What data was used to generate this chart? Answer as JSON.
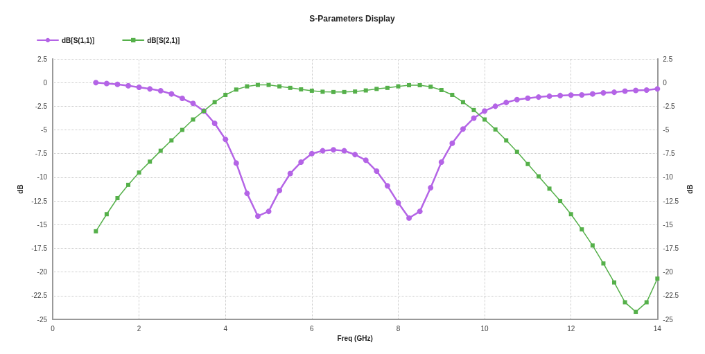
{
  "chart_data": {
    "type": "line",
    "title": "S-Parameters Display",
    "xlabel": "Freq (GHz)",
    "ylabel": "dB",
    "y2label": "dB",
    "x": [
      1,
      1.25,
      1.5,
      1.75,
      2,
      2.25,
      2.5,
      2.75,
      3,
      3.25,
      3.5,
      3.75,
      4,
      4.25,
      4.5,
      4.75,
      5,
      5.25,
      5.5,
      5.75,
      6,
      6.25,
      6.5,
      6.75,
      7,
      7.25,
      7.5,
      7.75,
      8,
      8.25,
      8.5,
      8.75,
      9,
      9.25,
      9.5,
      9.75,
      10,
      10.25,
      10.5,
      10.75,
      11,
      11.25,
      11.5,
      11.75,
      12,
      12.25,
      12.5,
      12.75,
      13,
      13.25,
      13.5,
      13.75,
      14
    ],
    "series": [
      {
        "name": "dB[S(1,1)]",
        "color": "#b464e6",
        "marker": "circle",
        "values": [
          0,
          -0.1,
          -0.19,
          -0.33,
          -0.5,
          -0.67,
          -0.86,
          -1.2,
          -1.67,
          -2.2,
          -3.0,
          -4.3,
          -6.0,
          -8.5,
          -11.7,
          -14.1,
          -13.6,
          -11.4,
          -9.6,
          -8.4,
          -7.5,
          -7.2,
          -7.1,
          -7.2,
          -7.6,
          -8.2,
          -9.35,
          -10.9,
          -12.7,
          -14.3,
          -13.6,
          -11.1,
          -8.4,
          -6.4,
          -4.9,
          -3.75,
          -3.0,
          -2.5,
          -2.1,
          -1.8,
          -1.65,
          -1.53,
          -1.44,
          -1.37,
          -1.32,
          -1.3,
          -1.2,
          -1.09,
          -1.02,
          -0.9,
          -0.83,
          -0.79,
          -0.67
        ]
      },
      {
        "name": "dB[S(2,1)]",
        "color": "#55b04a",
        "marker": "square",
        "values": [
          -15.7,
          -13.9,
          -12.2,
          -10.8,
          -9.5,
          -8.35,
          -7.2,
          -6.1,
          -5.0,
          -3.9,
          -3.0,
          -2.06,
          -1.3,
          -0.74,
          -0.4,
          -0.25,
          -0.25,
          -0.4,
          -0.56,
          -0.72,
          -0.86,
          -0.97,
          -1.0,
          -1.0,
          -0.95,
          -0.83,
          -0.67,
          -0.56,
          -0.4,
          -0.28,
          -0.28,
          -0.44,
          -0.79,
          -1.3,
          -2.06,
          -2.9,
          -3.9,
          -4.95,
          -6.1,
          -7.3,
          -8.6,
          -9.9,
          -11.2,
          -12.5,
          -13.9,
          -15.5,
          -17.2,
          -19.1,
          -21.1,
          -23.2,
          -24.2,
          -23.2,
          -20.7
        ]
      }
    ],
    "xlim": [
      0,
      14
    ],
    "xticks": [
      0,
      2,
      4,
      6,
      8,
      10,
      12,
      14
    ],
    "ylim": [
      -25,
      2.5
    ],
    "yticks": [
      -25,
      -22.5,
      -20,
      -17.5,
      -15,
      -12.5,
      -10,
      -7.5,
      -5,
      -2.5,
      0,
      2.5
    ],
    "y2lim": [
      -25,
      2.5
    ],
    "y2ticks": [
      -25,
      -22.5,
      -20,
      -17.5,
      -15,
      -12.5,
      -10,
      -7.5,
      -5,
      -2.5,
      0,
      2.5
    ],
    "grid": true,
    "legend": "top left",
    "line_style": "solid"
  }
}
